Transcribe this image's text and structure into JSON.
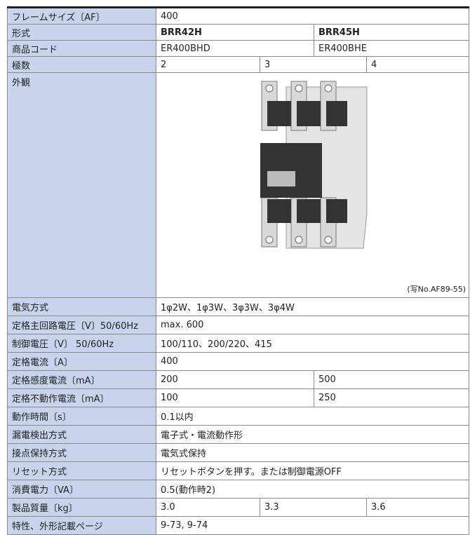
{
  "table": {
    "rows_top": [
      {
        "label": "フレームサイズ〔AF〕",
        "cells": [
          "400"
        ]
      },
      {
        "label": "形式",
        "cells": [
          "BRR42H",
          "BRR45H"
        ]
      },
      {
        "label": "商品コード",
        "cells": [
          "ER400BHD",
          "ER400BHE"
        ]
      },
      {
        "label": "極数",
        "cells": [
          "2",
          "3",
          "4"
        ]
      }
    ],
    "appearance": {
      "label": "外観",
      "caption": "(写No.AF89-55)"
    },
    "rows_bottom": [
      {
        "label": "電気方式",
        "cells": [
          "1φ2W、1φ3W、3φ3W、3φ4W"
        ]
      },
      {
        "label": "定格主回路電圧〔V〕50/60Hz",
        "cells": [
          "max. 600"
        ]
      },
      {
        "label": "制御電圧〔V〕 50/60Hz",
        "cells": [
          "100/110、200/220、415"
        ]
      },
      {
        "label": "定格電流〔A〕",
        "cells": [
          "400"
        ]
      },
      {
        "label": "定格感度電流〔mA〕",
        "cells": [
          "200",
          "500"
        ]
      },
      {
        "label": "定格不動作電流〔mA〕",
        "cells": [
          "100",
          "250"
        ]
      },
      {
        "label": "動作時間〔s〕",
        "cells": [
          "0.1以内"
        ]
      },
      {
        "label": "漏電検出方式",
        "cells": [
          "電子式・電流動作形"
        ]
      },
      {
        "label": "接点保持方式",
        "cells": [
          "電気式保持"
        ]
      },
      {
        "label": "リセット方式",
        "cells": [
          "リセットボタンを押す。または制御電源OFF"
        ]
      },
      {
        "label": "消費電力〔VA〕",
        "cells": [
          "0.5(動作時2)"
        ]
      },
      {
        "label": "製品質量〔kg〕",
        "cells": [
          "3.0",
          "3.3",
          "3.6"
        ]
      },
      {
        "label": "特性、外形記載ページ",
        "cells": [
          "9-73, 9-74"
        ]
      }
    ]
  }
}
